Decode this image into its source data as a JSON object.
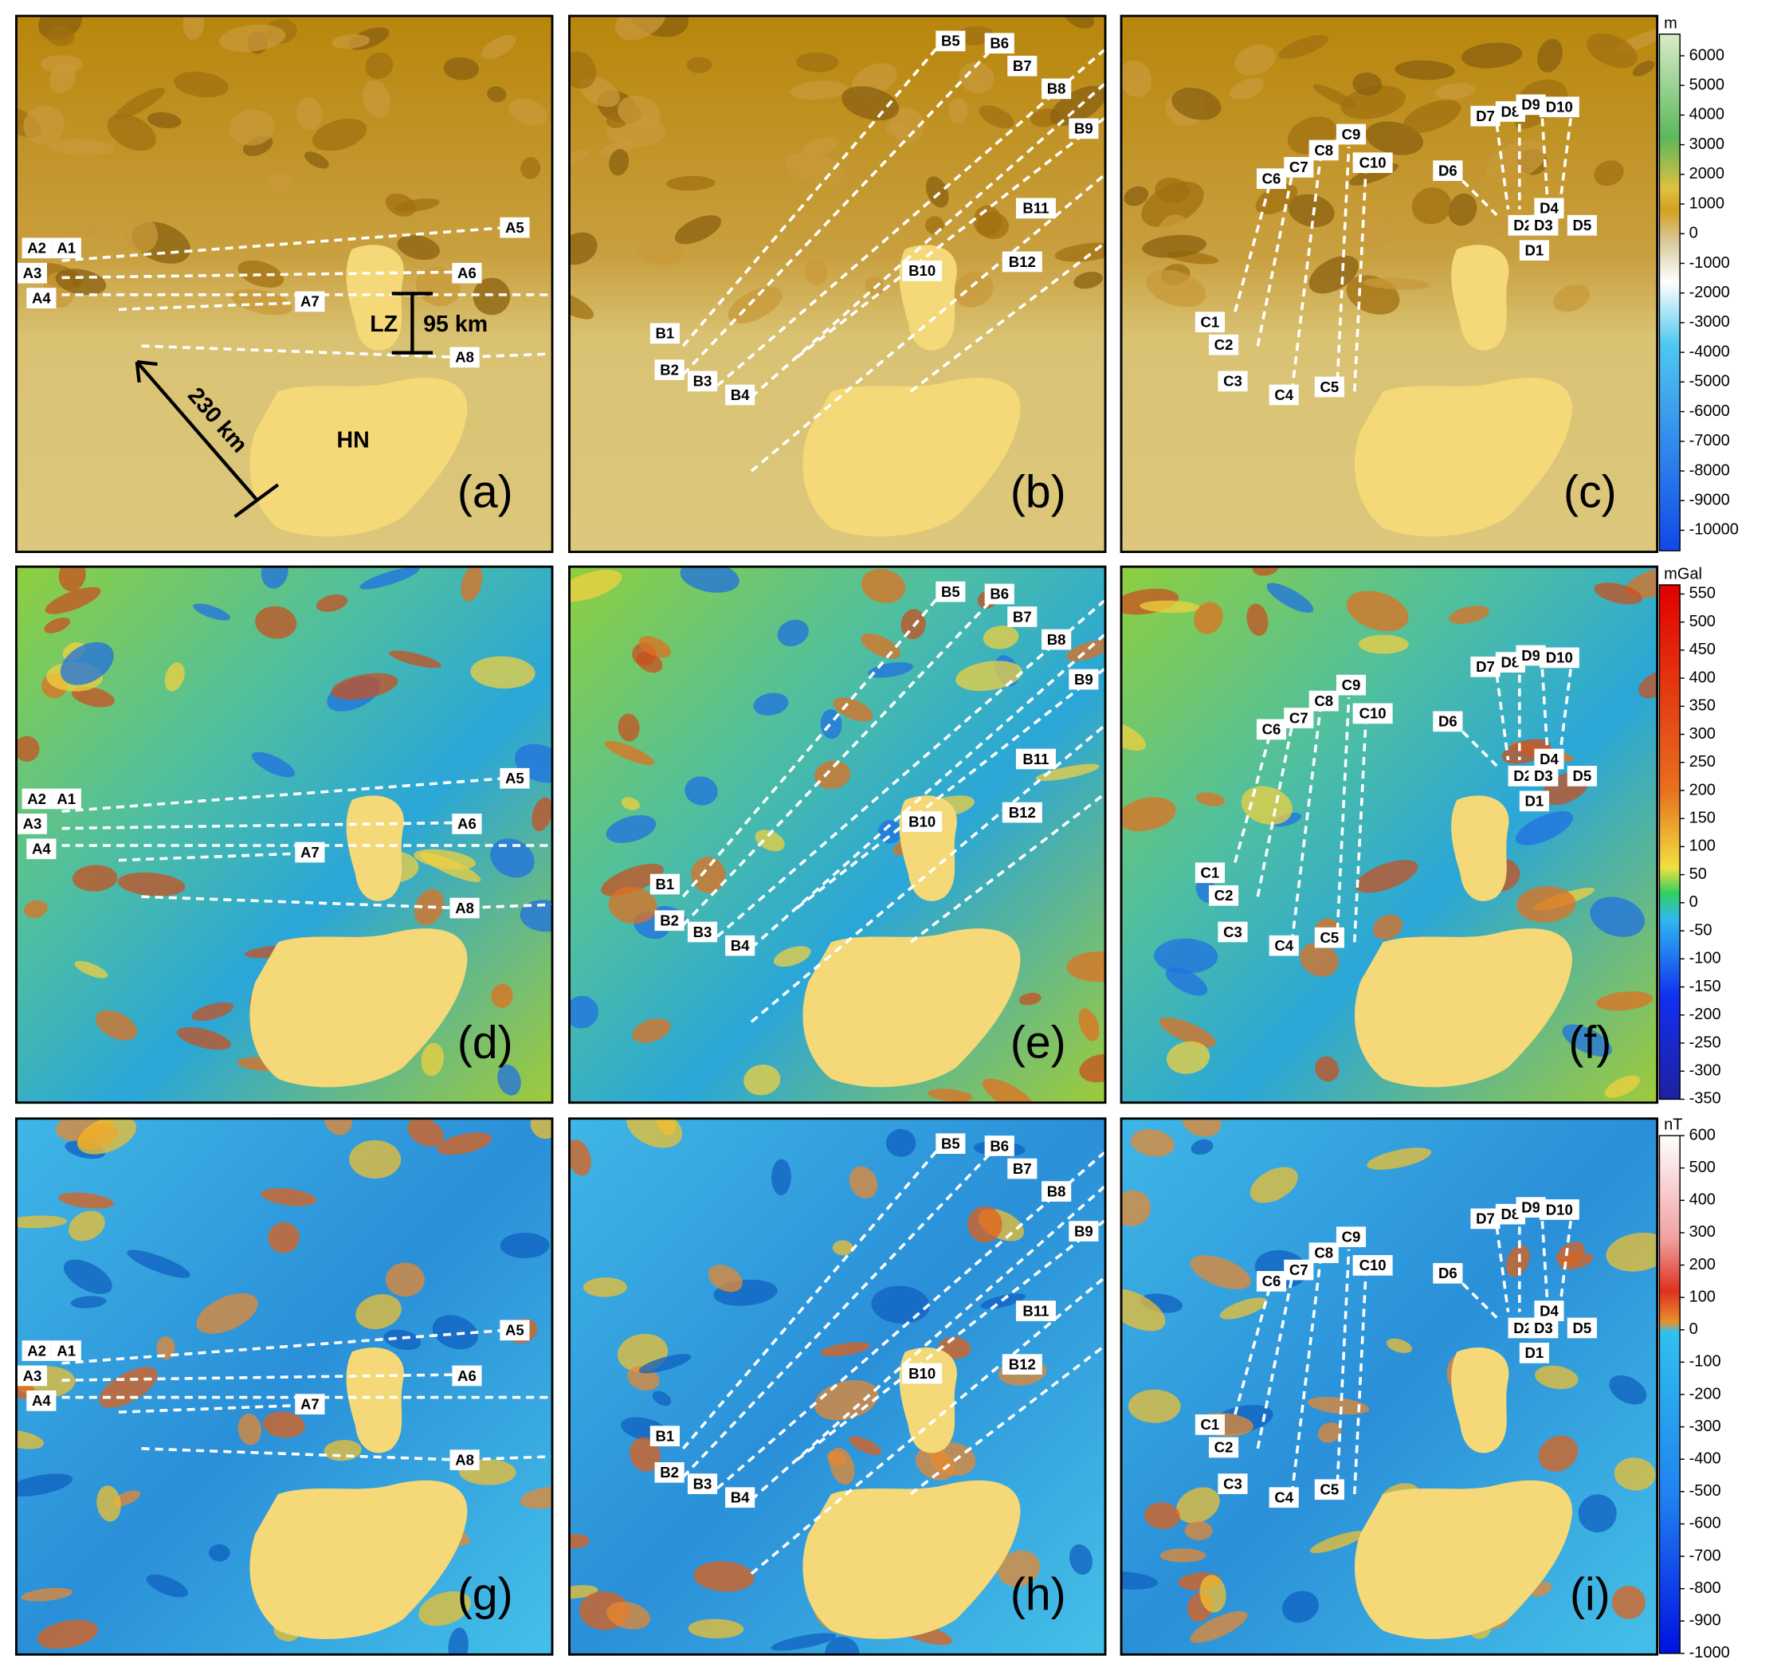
{
  "panels": [
    {
      "letter": "(a)",
      "labels": [
        "A1",
        "A2",
        "A3",
        "A4",
        "A5",
        "A6",
        "A7",
        "A8"
      ]
    },
    {
      "letter": "(b)",
      "labels": [
        "B1",
        "B2",
        "B3",
        "B4",
        "B5",
        "B6",
        "B7",
        "B8",
        "B9",
        "B10",
        "B11",
        "B12"
      ]
    },
    {
      "letter": "(c)",
      "labels": [
        "C1",
        "C2",
        "C3",
        "C4",
        "C5",
        "C6",
        "C7",
        "C8",
        "C9",
        "C10",
        "D1",
        "D2",
        "D3",
        "D4",
        "D5",
        "D6",
        "D7",
        "D8",
        "D9",
        "D10"
      ]
    },
    {
      "letter": "(d)",
      "labels": [
        "A1",
        "A2",
        "A3",
        "A4",
        "A5",
        "A6",
        "A7",
        "A8"
      ]
    },
    {
      "letter": "(e)",
      "labels": [
        "B1",
        "B2",
        "B3",
        "B4",
        "B5",
        "B6",
        "B7",
        "B8",
        "B9",
        "B10",
        "B11",
        "B12"
      ]
    },
    {
      "letter": "(f)",
      "labels": [
        "C1",
        "C2",
        "C3",
        "C4",
        "C5",
        "C6",
        "C7",
        "C8",
        "C9",
        "C10",
        "D1",
        "D2",
        "D3",
        "D4",
        "D5",
        "D6",
        "D7",
        "D8",
        "D9",
        "D10"
      ]
    },
    {
      "letter": "(g)",
      "labels": [
        "A1",
        "A2",
        "A3",
        "A4",
        "A5",
        "A6",
        "A7",
        "A8"
      ]
    },
    {
      "letter": "(h)",
      "labels": [
        "B1",
        "B2",
        "B3",
        "B4",
        "B5",
        "B6",
        "B7",
        "B8",
        "B9",
        "B10",
        "B11",
        "B12"
      ]
    },
    {
      "letter": "(i)",
      "labels": [
        "C1",
        "C2",
        "C3",
        "C4",
        "C5",
        "C6",
        "C7",
        "C8",
        "C9",
        "C10",
        "D1",
        "D2",
        "D3",
        "D4",
        "D5",
        "D6",
        "D7",
        "D8",
        "D9",
        "D10"
      ]
    }
  ],
  "annotations": {
    "lz": "LZ",
    "dist_short": "95 km",
    "dist_long": "230 km",
    "island": "HN"
  },
  "colorbars": [
    {
      "unit": "m",
      "ticks": [
        6000,
        5000,
        4000,
        3000,
        2000,
        1000,
        0,
        -1000,
        -2000,
        -3000,
        -4000,
        -5000,
        -6000,
        -7000,
        -8000,
        -9000,
        -10000
      ]
    },
    {
      "unit": "mGal",
      "ticks": [
        550,
        500,
        450,
        400,
        350,
        300,
        250,
        200,
        150,
        100,
        50,
        0,
        -50,
        -100,
        -150,
        -200,
        -250,
        -300,
        -350
      ]
    },
    {
      "unit": "nT",
      "ticks": [
        600,
        500,
        400,
        300,
        200,
        100,
        0,
        -100,
        -200,
        -300,
        -400,
        -500,
        -600,
        -700,
        -800,
        -900,
        -1000
      ]
    }
  ]
}
